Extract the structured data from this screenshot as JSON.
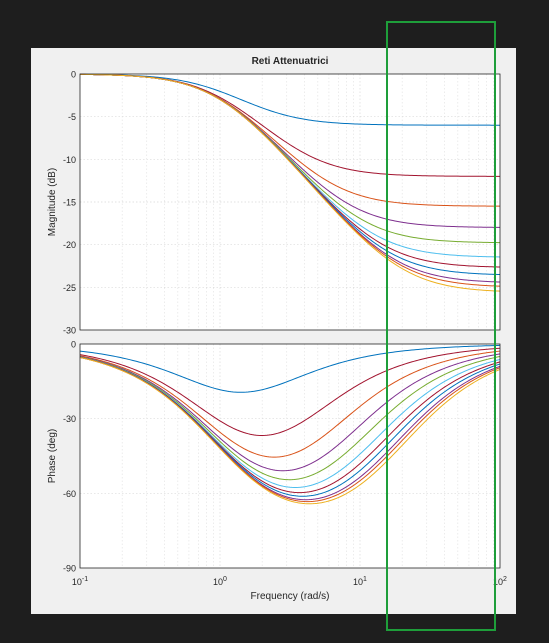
{
  "colors": {
    "screen_bg": "#1e1e1e",
    "figure_bg": "#f0f0f0",
    "axes_bg": "#ffffff",
    "grid": "#d9d9d9",
    "axis": "#262626",
    "highlight_box": "#1e9e3a"
  },
  "chart_data": {
    "type": "line",
    "title": "Reti Attenuatrici",
    "xlabel": "Frequency  (rad/s)",
    "xscale": "log",
    "xlim": [
      0.1,
      100
    ],
    "x_ticks": [
      {
        "value": 0.1,
        "base": "10",
        "exp": "-1"
      },
      {
        "value": 1,
        "base": "10",
        "exp": "0"
      },
      {
        "value": 10,
        "base": "10",
        "exp": "1"
      },
      {
        "value": 100,
        "base": "10",
        "exp": "2"
      }
    ],
    "magnitude": {
      "ylabel": "Magnitude (dB)",
      "ylim": [
        -30,
        0
      ],
      "y_ticks": [
        "0",
        "-5",
        "-10",
        "-15",
        "-20",
        "-25",
        "-30"
      ],
      "grid": true
    },
    "phase": {
      "ylabel": "Phase (deg)",
      "ylim": [
        -90,
        0
      ],
      "y_ticks": [
        "0",
        "-30",
        "-60",
        "-90"
      ],
      "grid": true
    },
    "series": [
      {
        "color": "#0072bd",
        "final_gain_db": -6.0
      },
      {
        "color": "#a2142f",
        "final_gain_db": -12.0
      },
      {
        "color": "#d95319",
        "final_gain_db": -15.5
      },
      {
        "color": "#7e2f8e",
        "final_gain_db": -18.0
      },
      {
        "color": "#77ac30",
        "final_gain_db": -19.8
      },
      {
        "color": "#4dbeee",
        "final_gain_db": -21.5
      },
      {
        "color": "#a2142f",
        "final_gain_db": -22.7
      },
      {
        "color": "#0072bd",
        "final_gain_db": -23.6
      },
      {
        "color": "#7e2f8e",
        "final_gain_db": -24.5
      },
      {
        "color": "#d95319",
        "final_gain_db": -25.0
      },
      {
        "color": "#edb120",
        "final_gain_db": -25.6
      }
    ]
  }
}
